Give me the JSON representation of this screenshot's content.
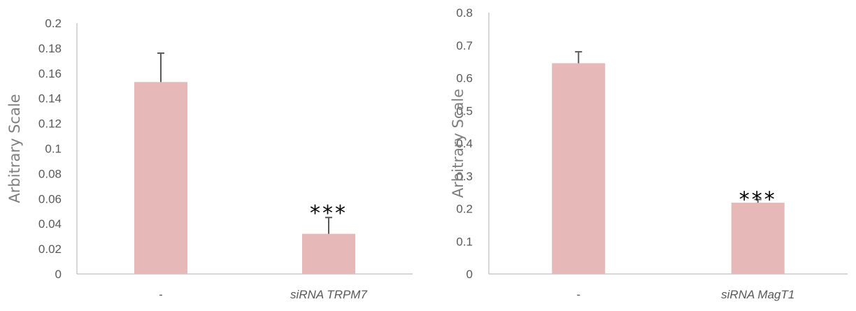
{
  "chart_data": [
    {
      "type": "bar",
      "categories": [
        "-",
        "siRNA TRPM7"
      ],
      "values": [
        0.153,
        0.032
      ],
      "errors": [
        0.023,
        0.013
      ],
      "ylabel": "Arbitrary Scale",
      "ylim": [
        0,
        0.2
      ],
      "yticks": [
        "0",
        "0.02",
        "0.04",
        "0.06",
        "0.08",
        "0.1",
        "0.12",
        "0.14",
        "0.16",
        "0.18",
        "0.2"
      ],
      "annotations": [
        "",
        "***"
      ],
      "grid": false,
      "bar_color": "#e6b8b7"
    },
    {
      "type": "bar",
      "categories": [
        "-",
        "siRNA MagT1"
      ],
      "values": [
        0.645,
        0.218
      ],
      "errors": [
        0.035,
        0.01
      ],
      "ylabel": "Arbitrary Scale",
      "ylim": [
        0,
        0.8
      ],
      "yticks": [
        "0",
        "0.1",
        "0.2",
        "0.3",
        "0.4",
        "0.5",
        "0.6",
        "0.7",
        "0.8"
      ],
      "annotations": [
        "",
        "***"
      ],
      "grid": false,
      "bar_color": "#e6b8b7"
    }
  ]
}
